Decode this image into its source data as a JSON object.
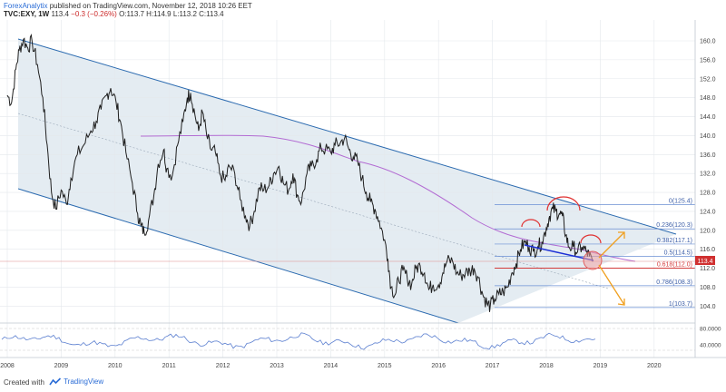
{
  "header": {
    "author": "ForexAnalytix",
    "published": "published on TradingView.com, November 12, 2018 10:26 EET",
    "symbol": "TVC:EXY, 1W",
    "last": "113.4",
    "change": "−0.3 (−0.26%)",
    "ohlc": "O:113.7 H:114.9 L:113.2 C:113.4"
  },
  "footer": {
    "created_with": "Created with",
    "brand": "TradingView"
  },
  "colors": {
    "price": "#1f1f1f",
    "channel_line": "#2c6bb0",
    "channel_fill": "#dbe5ee",
    "fib_line": "#6a8fd4",
    "fib_red": "#d33b3b",
    "ma": "#b36cd3",
    "arrow": "#f0a020",
    "price_tag": "#d03030",
    "osc": "#5b7fd0"
  },
  "chart_data": {
    "type": "line",
    "title": "TVC:EXY, 1W",
    "x_ticks": [
      "2008",
      "2009",
      "2010",
      "2011",
      "2012",
      "2013",
      "2014",
      "2015",
      "2016",
      "2017",
      "2018",
      "2019",
      "2020"
    ],
    "y_ticks": [
      "160.0",
      "156.0",
      "152.0",
      "148.0",
      "144.0",
      "140.0",
      "136.0",
      "132.0",
      "128.0",
      "124.0",
      "120.0",
      "116.0",
      "112.0",
      "108.0",
      "104.0"
    ],
    "ylim": [
      100.8,
      161.9
    ],
    "xlim": [
      2008.0,
      2020.75
    ],
    "last_price": "113.4",
    "price_path": [
      [
        2008.0,
        148.5
      ],
      [
        2008.08,
        147.0
      ],
      [
        2008.16,
        154.0
      ],
      [
        2008.22,
        158.0
      ],
      [
        2008.3,
        160.3
      ],
      [
        2008.38,
        158.5
      ],
      [
        2008.46,
        160.0
      ],
      [
        2008.56,
        155.0
      ],
      [
        2008.66,
        148.0
      ],
      [
        2008.74,
        138.0
      ],
      [
        2008.82,
        128.0
      ],
      [
        2008.9,
        124.5
      ],
      [
        2009.0,
        128.5
      ],
      [
        2009.1,
        125.5
      ],
      [
        2009.18,
        131.0
      ],
      [
        2009.3,
        136.0
      ],
      [
        2009.42,
        138.0
      ],
      [
        2009.55,
        141.0
      ],
      [
        2009.65,
        143.0
      ],
      [
        2009.74,
        145.5
      ],
      [
        2009.84,
        148.5
      ],
      [
        2009.92,
        150.0
      ],
      [
        2010.02,
        147.0
      ],
      [
        2010.1,
        143.0
      ],
      [
        2010.2,
        136.5
      ],
      [
        2010.32,
        130.0
      ],
      [
        2010.42,
        123.5
      ],
      [
        2010.48,
        121.0
      ],
      [
        2010.54,
        119.5
      ],
      [
        2010.62,
        122.0
      ],
      [
        2010.72,
        127.5
      ],
      [
        2010.8,
        134.0
      ],
      [
        2010.9,
        137.0
      ],
      [
        2010.96,
        133.0
      ],
      [
        2011.06,
        131.5
      ],
      [
        2011.16,
        138.0
      ],
      [
        2011.26,
        143.0
      ],
      [
        2011.34,
        148.0
      ],
      [
        2011.4,
        149.0
      ],
      [
        2011.48,
        144.5
      ],
      [
        2011.55,
        141.0
      ],
      [
        2011.62,
        145.0
      ],
      [
        2011.7,
        140.0
      ],
      [
        2011.78,
        137.0
      ],
      [
        2011.86,
        136.5
      ],
      [
        2011.94,
        132.0
      ],
      [
        2012.04,
        130.5
      ],
      [
        2012.12,
        133.5
      ],
      [
        2012.22,
        132.0
      ],
      [
        2012.32,
        126.5
      ],
      [
        2012.42,
        123.0
      ],
      [
        2012.5,
        121.0
      ],
      [
        2012.58,
        124.0
      ],
      [
        2012.68,
        129.0
      ],
      [
        2012.76,
        128.5
      ],
      [
        2012.86,
        129.5
      ],
      [
        2012.94,
        132.0
      ],
      [
        2013.04,
        133.5
      ],
      [
        2013.12,
        130.0
      ],
      [
        2013.22,
        128.5
      ],
      [
        2013.3,
        132.0
      ],
      [
        2013.38,
        127.5
      ],
      [
        2013.46,
        126.0
      ],
      [
        2013.56,
        132.0
      ],
      [
        2013.64,
        133.5
      ],
      [
        2013.74,
        135.0
      ],
      [
        2013.82,
        137.5
      ],
      [
        2013.9,
        137.0
      ],
      [
        2014.0,
        136.5
      ],
      [
        2014.08,
        138.0
      ],
      [
        2014.18,
        138.5
      ],
      [
        2014.26,
        139.5
      ],
      [
        2014.34,
        137.0
      ],
      [
        2014.42,
        135.5
      ],
      [
        2014.5,
        134.5
      ],
      [
        2014.58,
        131.0
      ],
      [
        2014.66,
        128.0
      ],
      [
        2014.74,
        126.0
      ],
      [
        2014.82,
        124.5
      ],
      [
        2014.9,
        122.0
      ],
      [
        2015.0,
        118.0
      ],
      [
        2015.06,
        114.0
      ],
      [
        2015.12,
        108.0
      ],
      [
        2015.2,
        106.5
      ],
      [
        2015.26,
        109.5
      ],
      [
        2015.34,
        111.5
      ],
      [
        2015.42,
        110.0
      ],
      [
        2015.5,
        108.5
      ],
      [
        2015.58,
        112.0
      ],
      [
        2015.66,
        112.5
      ],
      [
        2015.74,
        111.0
      ],
      [
        2015.82,
        107.5
      ],
      [
        2015.9,
        108.5
      ],
      [
        2016.0,
        108.5
      ],
      [
        2016.08,
        111.0
      ],
      [
        2016.16,
        113.5
      ],
      [
        2016.26,
        113.5
      ],
      [
        2016.34,
        111.0
      ],
      [
        2016.42,
        110.5
      ],
      [
        2016.5,
        111.0
      ],
      [
        2016.58,
        111.5
      ],
      [
        2016.66,
        112.0
      ],
      [
        2016.74,
        110.0
      ],
      [
        2016.82,
        106.5
      ],
      [
        2016.9,
        104.5
      ],
      [
        2016.96,
        104.0
      ],
      [
        2017.04,
        105.5
      ],
      [
        2017.12,
        106.5
      ],
      [
        2017.2,
        107.0
      ],
      [
        2017.28,
        108.0
      ],
      [
        2017.36,
        111.0
      ],
      [
        2017.44,
        113.0
      ],
      [
        2017.52,
        116.0
      ],
      [
        2017.6,
        117.5
      ],
      [
        2017.68,
        116.5
      ],
      [
        2017.76,
        115.5
      ],
      [
        2017.84,
        116.5
      ],
      [
        2017.92,
        117.5
      ],
      [
        2018.0,
        120.5
      ],
      [
        2018.06,
        123.0
      ],
      [
        2018.12,
        124.5
      ],
      [
        2018.18,
        124.0
      ],
      [
        2018.24,
        123.5
      ],
      [
        2018.3,
        123.0
      ],
      [
        2018.36,
        119.0
      ],
      [
        2018.42,
        116.5
      ],
      [
        2018.5,
        116.5
      ],
      [
        2018.58,
        115.5
      ],
      [
        2018.66,
        116.5
      ],
      [
        2018.74,
        115.5
      ],
      [
        2018.8,
        114.5
      ],
      [
        2018.86,
        113.4
      ]
    ],
    "annotations": [
      "0(125.4)",
      "0.236(120.3)",
      "0.382(117.1)",
      "0.5(114.5)",
      "0.618(112.0)",
      "0.786(108.3)",
      "1(103.7)"
    ],
    "oscillator": {
      "y_ticks": [
        "80.0000",
        "40.0000"
      ],
      "ylim": [
        20,
        100
      ]
    }
  }
}
